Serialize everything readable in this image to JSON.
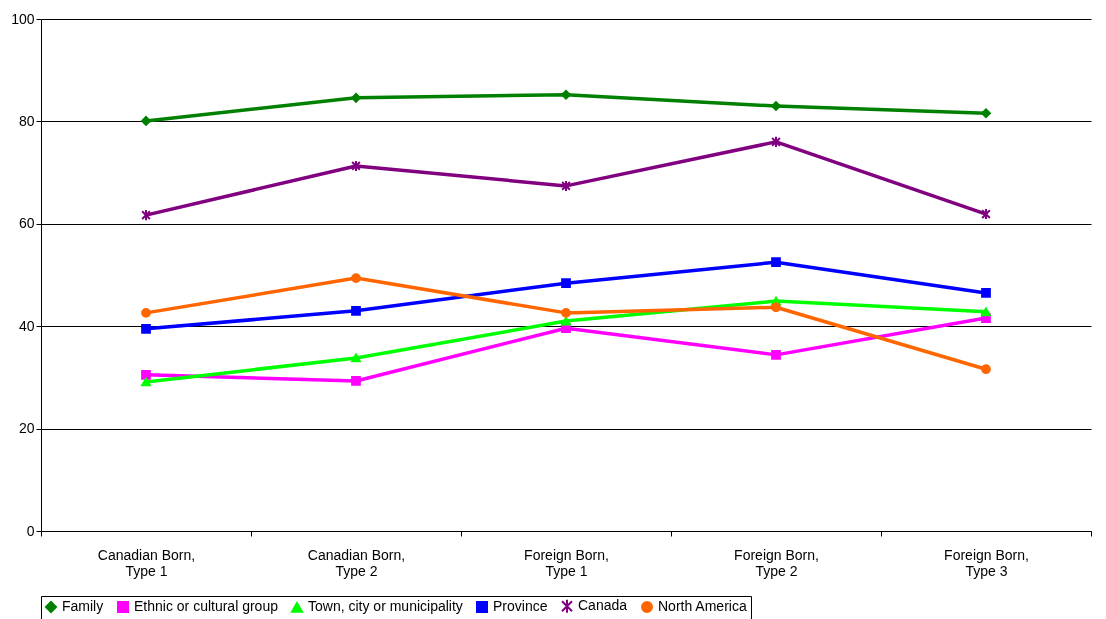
{
  "chart_data": {
    "type": "line",
    "categories": [
      "Canadian Born,\nType 1",
      "Canadian Born,\nType 2",
      "Foreign Born,\nType 1",
      "Foreign Born,\nType 2",
      "Foreign Born,\nType 3"
    ],
    "series": [
      {
        "name": "Family",
        "color": "#008000",
        "marker": "diamond",
        "values": [
          80.1,
          84.6,
          85.2,
          83.0,
          81.6
        ]
      },
      {
        "name": "Ethnic or cultural group",
        "color": "#ff00ff",
        "marker": "square",
        "values": [
          30.5,
          29.3,
          39.6,
          34.4,
          41.6
        ]
      },
      {
        "name": "Town, city or municipality",
        "color": "#00ff00",
        "marker": "triangle",
        "values": [
          29.1,
          33.8,
          41.0,
          44.9,
          42.8
        ]
      },
      {
        "name": "Province",
        "color": "#0000ff",
        "marker": "square",
        "values": [
          39.5,
          43.0,
          48.4,
          52.5,
          46.5
        ]
      },
      {
        "name": "Canada",
        "color": "#800080",
        "marker": "cross",
        "values": [
          61.7,
          71.3,
          67.4,
          76.0,
          61.9
        ]
      },
      {
        "name": "North America",
        "color": "#ff6600",
        "marker": "circle",
        "values": [
          42.6,
          49.4,
          42.6,
          43.7,
          31.6
        ]
      }
    ],
    "ylim": [
      0,
      100
    ],
    "yticks": [
      0,
      20,
      40,
      60,
      80,
      100
    ],
    "grid": "y",
    "legend": "bottom",
    "line_style": "solid"
  }
}
